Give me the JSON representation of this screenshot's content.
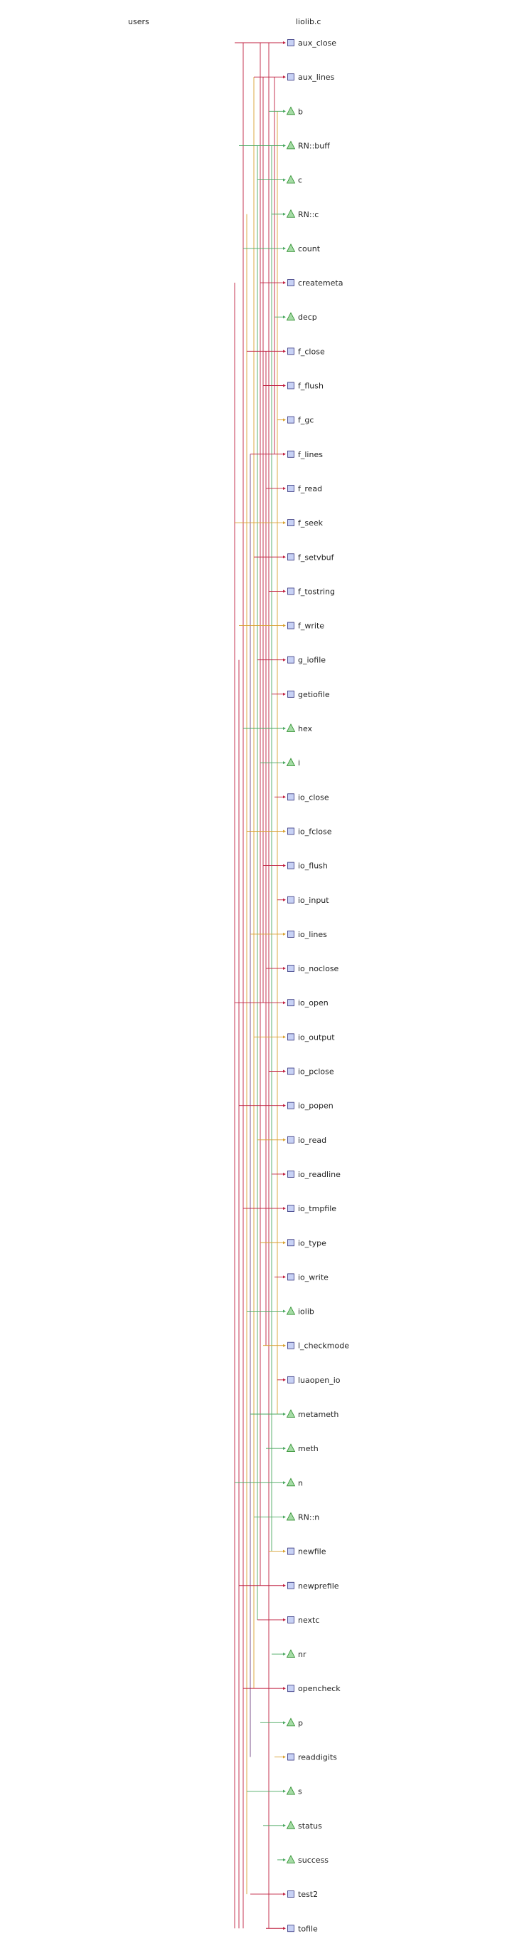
{
  "header": {
    "users_label": "users",
    "file_label": "liolib.c"
  },
  "colors": {
    "function_fill": "#c8d2f5",
    "function_stroke": "#30307a",
    "variable_fill": "#a5dca5",
    "variable_stroke": "#2a8a2a",
    "line_red": "#c02040",
    "line_orange": "#d9a030",
    "line_green": "#4aa860",
    "line_purple": "#704080"
  },
  "entries": [
    {
      "label": "aux_close",
      "kind": "function"
    },
    {
      "label": "aux_lines",
      "kind": "function"
    },
    {
      "label": "b",
      "kind": "variable"
    },
    {
      "label": "RN::buff",
      "kind": "variable"
    },
    {
      "label": "c",
      "kind": "variable"
    },
    {
      "label": "RN::c",
      "kind": "variable"
    },
    {
      "label": "count",
      "kind": "variable"
    },
    {
      "label": "createmeta",
      "kind": "function"
    },
    {
      "label": "decp",
      "kind": "variable"
    },
    {
      "label": "f_close",
      "kind": "function"
    },
    {
      "label": "f_flush",
      "kind": "function"
    },
    {
      "label": "f_gc",
      "kind": "function"
    },
    {
      "label": "f_lines",
      "kind": "function"
    },
    {
      "label": "f_read",
      "kind": "function"
    },
    {
      "label": "f_seek",
      "kind": "function"
    },
    {
      "label": "f_setvbuf",
      "kind": "function"
    },
    {
      "label": "f_tostring",
      "kind": "function"
    },
    {
      "label": "f_write",
      "kind": "function"
    },
    {
      "label": "g_iofile",
      "kind": "function"
    },
    {
      "label": "getiofile",
      "kind": "function"
    },
    {
      "label": "hex",
      "kind": "variable"
    },
    {
      "label": "i",
      "kind": "variable"
    },
    {
      "label": "io_close",
      "kind": "function"
    },
    {
      "label": "io_fclose",
      "kind": "function"
    },
    {
      "label": "io_flush",
      "kind": "function"
    },
    {
      "label": "io_input",
      "kind": "function"
    },
    {
      "label": "io_lines",
      "kind": "function"
    },
    {
      "label": "io_noclose",
      "kind": "function"
    },
    {
      "label": "io_open",
      "kind": "function"
    },
    {
      "label": "io_output",
      "kind": "function"
    },
    {
      "label": "io_pclose",
      "kind": "function"
    },
    {
      "label": "io_popen",
      "kind": "function"
    },
    {
      "label": "io_read",
      "kind": "function"
    },
    {
      "label": "io_readline",
      "kind": "function"
    },
    {
      "label": "io_tmpfile",
      "kind": "function"
    },
    {
      "label": "io_type",
      "kind": "function"
    },
    {
      "label": "io_write",
      "kind": "function"
    },
    {
      "label": "iolib",
      "kind": "variable"
    },
    {
      "label": "l_checkmode",
      "kind": "function"
    },
    {
      "label": "luaopen_io",
      "kind": "function"
    },
    {
      "label": "metameth",
      "kind": "variable"
    },
    {
      "label": "meth",
      "kind": "variable"
    },
    {
      "label": "n",
      "kind": "variable"
    },
    {
      "label": "RN::n",
      "kind": "variable"
    },
    {
      "label": "newfile",
      "kind": "function"
    },
    {
      "label": "newprefile",
      "kind": "function"
    },
    {
      "label": "nextc",
      "kind": "function"
    },
    {
      "label": "nr",
      "kind": "variable"
    },
    {
      "label": "opencheck",
      "kind": "function"
    },
    {
      "label": "p",
      "kind": "variable"
    },
    {
      "label": "readdigits",
      "kind": "function"
    },
    {
      "label": "s",
      "kind": "variable"
    },
    {
      "label": "status",
      "kind": "variable"
    },
    {
      "label": "success",
      "kind": "variable"
    },
    {
      "label": "test2",
      "kind": "function"
    },
    {
      "label": "tofile",
      "kind": "function"
    }
  ]
}
